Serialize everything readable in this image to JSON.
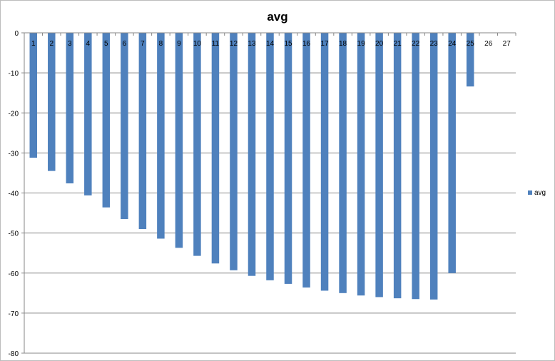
{
  "chart_data": {
    "type": "bar",
    "title": "avg",
    "xlabel": "",
    "ylabel": "",
    "ylim": [
      -80,
      0
    ],
    "yticks": [
      0,
      -10,
      -20,
      -30,
      -40,
      -50,
      -60,
      -70,
      -80
    ],
    "grid": true,
    "legend_position": "right",
    "categories": [
      "1",
      "2",
      "3",
      "4",
      "5",
      "6",
      "7",
      "8",
      "9",
      "10",
      "11",
      "12",
      "13",
      "14",
      "15",
      "16",
      "17",
      "18",
      "19",
      "20",
      "21",
      "22",
      "23",
      "24",
      "25",
      "26",
      "27"
    ],
    "series": [
      {
        "name": "avg",
        "color": "#4f81bd",
        "values": [
          -31.2,
          -34.5,
          -37.6,
          -40.6,
          -43.6,
          -46.5,
          -49.0,
          -51.4,
          -53.7,
          -55.7,
          -57.6,
          -59.3,
          -60.7,
          -61.8,
          -62.7,
          -63.6,
          -64.4,
          -65.0,
          -65.6,
          -66.0,
          -66.3,
          -66.5,
          -66.6,
          -60.0,
          -13.4,
          null,
          null
        ]
      }
    ]
  }
}
